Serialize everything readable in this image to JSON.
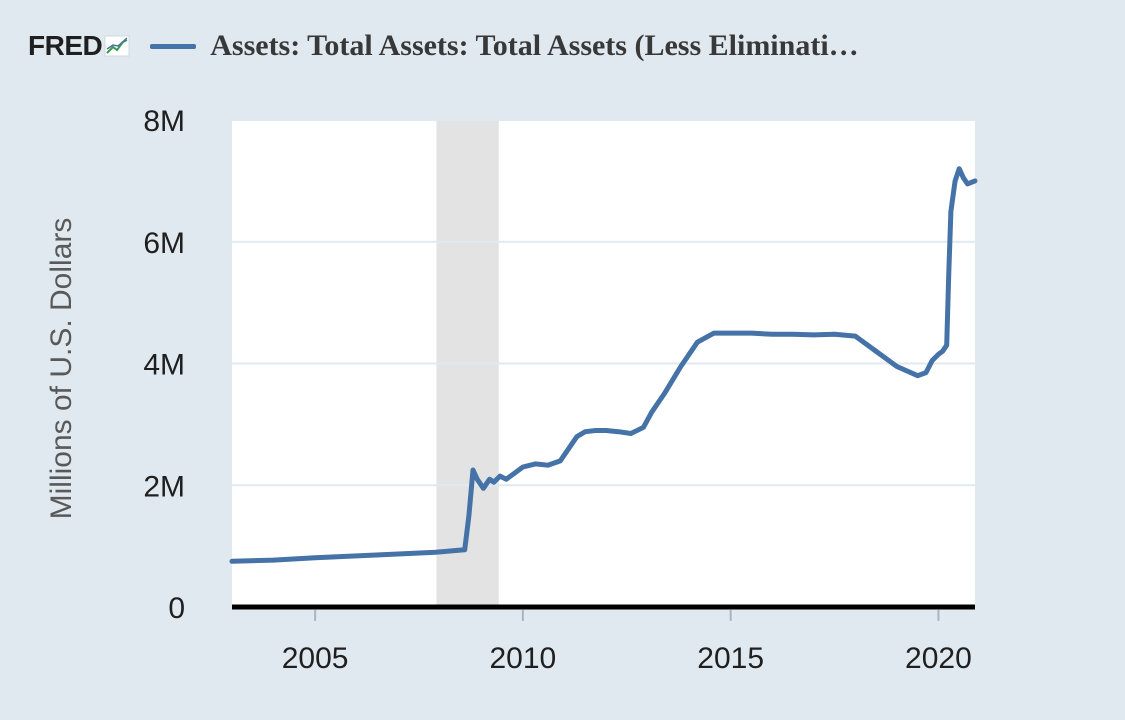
{
  "brand": {
    "logo_text": "FRED"
  },
  "colors": {
    "series": "#4572a7",
    "recession": "#e3e3e3",
    "plot_bg": "#ffffff",
    "grid": "#e1e9f0"
  },
  "chart_data": {
    "type": "line",
    "title": "Assets: Total Assets: Total Assets (Less Eliminati…",
    "ylabel": "Millions of U.S. Dollars",
    "xlabel": "",
    "xlim": [
      2003.0,
      2020.88
    ],
    "ylim": [
      0,
      8000000
    ],
    "y_ticks": [
      {
        "value": 0,
        "label": "0"
      },
      {
        "value": 2000000,
        "label": "2M"
      },
      {
        "value": 4000000,
        "label": "4M"
      },
      {
        "value": 6000000,
        "label": "6M"
      },
      {
        "value": 8000000,
        "label": "8M"
      }
    ],
    "x_ticks": [
      {
        "value": 2005,
        "label": "2005"
      },
      {
        "value": 2010,
        "label": "2010"
      },
      {
        "value": 2015,
        "label": "2015"
      },
      {
        "value": 2020,
        "label": "2020"
      }
    ],
    "recessions": [
      {
        "start": 2007.92,
        "end": 2009.42
      }
    ],
    "series": [
      {
        "name": "Assets: Total Assets: Total Assets (Less Eliminations from Consolidation)",
        "x": [
          2003.0,
          2004.0,
          2005.0,
          2006.0,
          2007.0,
          2007.9,
          2008.6,
          2008.7,
          2008.8,
          2008.9,
          2009.05,
          2009.2,
          2009.3,
          2009.45,
          2009.6,
          2009.8,
          2010.0,
          2010.3,
          2010.6,
          2010.9,
          2011.1,
          2011.3,
          2011.5,
          2011.75,
          2012.0,
          2012.3,
          2012.6,
          2012.9,
          2013.1,
          2013.4,
          2013.8,
          2014.2,
          2014.6,
          2015.0,
          2015.5,
          2016.0,
          2016.5,
          2017.0,
          2017.5,
          2018.0,
          2018.5,
          2019.0,
          2019.5,
          2019.7,
          2019.85,
          2020.0,
          2020.1,
          2020.2,
          2020.25,
          2020.3,
          2020.4,
          2020.5,
          2020.6,
          2020.7,
          2020.88
        ],
        "values": [
          750000,
          770000,
          810000,
          840000,
          870000,
          900000,
          940000,
          1500000,
          2250000,
          2100000,
          1950000,
          2100000,
          2050000,
          2150000,
          2100000,
          2200000,
          2300000,
          2350000,
          2330000,
          2400000,
          2600000,
          2800000,
          2880000,
          2900000,
          2900000,
          2880000,
          2850000,
          2950000,
          3200000,
          3500000,
          3950000,
          4350000,
          4500000,
          4500000,
          4500000,
          4480000,
          4480000,
          4470000,
          4480000,
          4450000,
          4200000,
          3950000,
          3800000,
          3850000,
          4050000,
          4150000,
          4200000,
          4300000,
          5500000,
          6500000,
          7000000,
          7200000,
          7050000,
          6950000,
          7000000
        ]
      }
    ]
  }
}
